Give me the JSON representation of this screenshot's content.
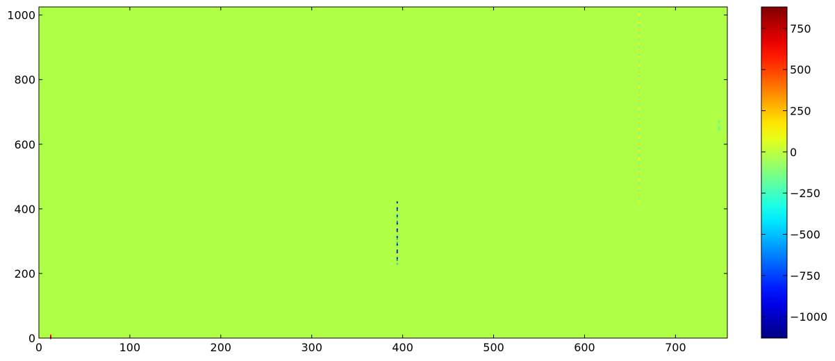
{
  "chart_data": {
    "type": "heatmap",
    "title": "",
    "xlabel": "",
    "ylabel": "",
    "xlim": [
      0,
      757
    ],
    "ylim": [
      0,
      1025
    ],
    "x_ticks": [
      0,
      100,
      200,
      300,
      400,
      500,
      600,
      700
    ],
    "y_ticks": [
      0,
      200,
      400,
      600,
      800,
      1000
    ],
    "x_tick_labels": [
      "0",
      "100",
      "200",
      "300",
      "400",
      "500",
      "600",
      "700"
    ],
    "y_tick_labels": [
      "0",
      "200",
      "400",
      "600",
      "800",
      "1000"
    ],
    "colormap": "jet",
    "background_value": 0,
    "background_color": "#b0ff47",
    "colorbar": {
      "vmin": -1130,
      "vmax": 880,
      "ticks": [
        -1000,
        -750,
        -500,
        -250,
        0,
        250,
        500,
        750
      ],
      "tick_labels": [
        "−1000",
        "−750",
        "−500",
        "−250",
        "0",
        "250",
        "500",
        "750"
      ],
      "location": "right"
    },
    "features": [
      {
        "x": 394,
        "y_range": [
          230,
          420
        ],
        "value_range": [
          -1130,
          200
        ],
        "description": "vertical streak near x=394"
      },
      {
        "x": 660,
        "y_range": [
          420,
          1010
        ],
        "value_range": [
          -200,
          200
        ],
        "description": "faint vertical streak near x=660"
      },
      {
        "x": 748,
        "y_range": [
          640,
          670
        ],
        "value_range": [
          -300,
          0
        ],
        "description": "small bluish patch near x=748"
      },
      {
        "x": 13,
        "y_range": [
          0,
          8
        ],
        "value_range": [
          500,
          880
        ],
        "description": "red specks near origin"
      }
    ],
    "grid": false
  }
}
